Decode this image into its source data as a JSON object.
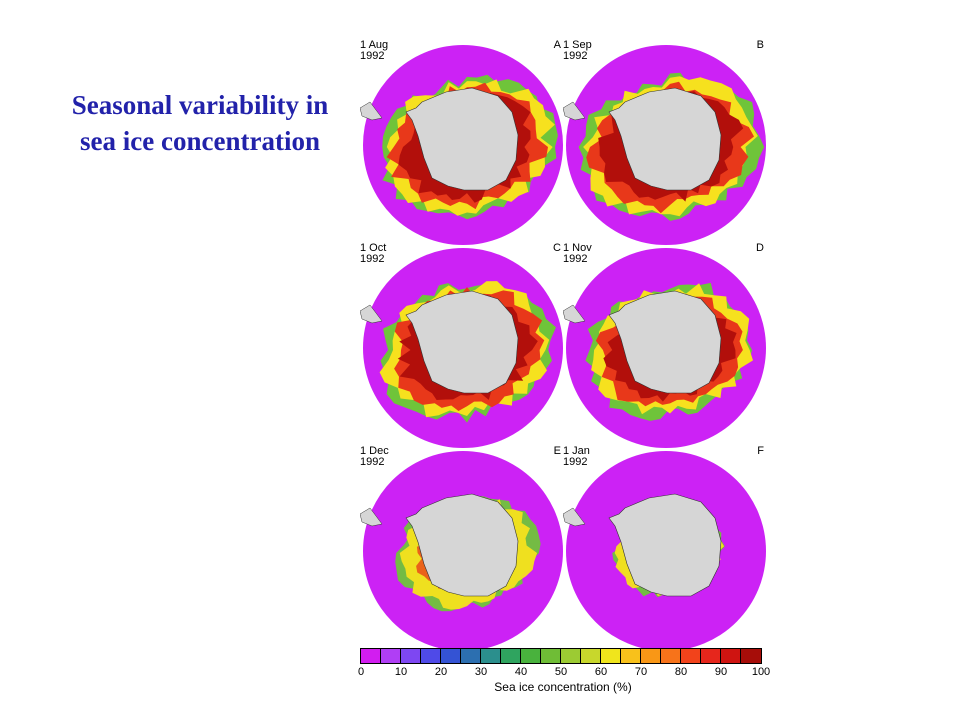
{
  "title": "Seasonal variability in sea ice concentration",
  "panels": [
    {
      "date": "1 Aug\n1992",
      "letter": "A",
      "month": "Aug"
    },
    {
      "date": "1 Sep\n1992",
      "letter": "B",
      "month": "Sep"
    },
    {
      "date": "1 Oct\n1992",
      "letter": "C",
      "month": "Oct"
    },
    {
      "date": "1 Nov\n1992",
      "letter": "D",
      "month": "Nov"
    },
    {
      "date": "1 Dec\n1992",
      "letter": "E",
      "month": "Dec"
    },
    {
      "date": "1 Jan\n1992",
      "letter": "F",
      "month": "Jan"
    }
  ],
  "colorbar": {
    "title": "Sea ice concentration (%)",
    "ticks": [
      "0",
      "10",
      "20",
      "30",
      "40",
      "50",
      "60",
      "70",
      "80",
      "90",
      "100"
    ],
    "colors": [
      "#d21df0",
      "#b03ef5",
      "#7e47f2",
      "#4f4ae8",
      "#3453d4",
      "#2c6fb0",
      "#2b8f8d",
      "#2fa45f",
      "#49b23d",
      "#6fbd36",
      "#9ccb33",
      "#c8d72c",
      "#f0e51c",
      "#f8c11b",
      "#f99716",
      "#f7731a",
      "#f2431b",
      "#e6261c",
      "#cf1411",
      "#a60d09"
    ]
  },
  "map_colors": {
    "ocean": "#cc22f5",
    "land": "#d6d6d6",
    "ice_outer": "#6fc43a",
    "ice_mid": "#f6e11e",
    "ice_inner": "#e8381a",
    "ice_core": "#b20f0b"
  }
}
